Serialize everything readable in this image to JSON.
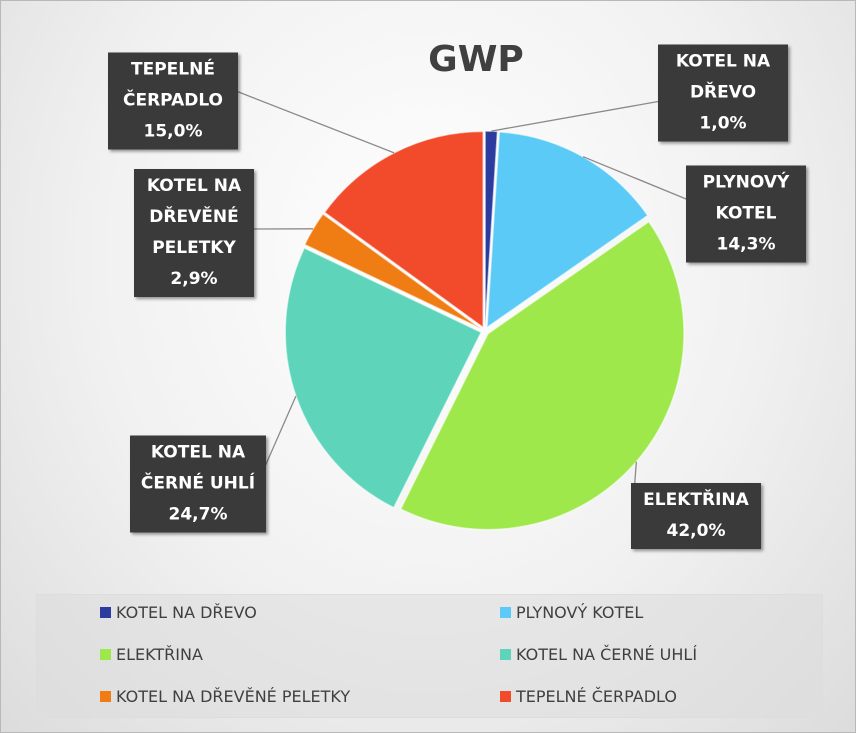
{
  "chart_data": {
    "type": "pie",
    "title": "GWP",
    "categories": [
      "KOTEL NA DŘEVO",
      "PLYNOVÝ KOTEL",
      "ELEKTŘINA",
      "KOTEL NA ČERNÉ UHLÍ",
      "KOTEL NA DŘEVĚNÉ PELETKY",
      "TEPELNÉ ČERPADLO"
    ],
    "values": [
      1.0,
      14.3,
      42.0,
      24.7,
      2.9,
      15.0
    ],
    "value_labels": [
      "1,0%",
      "14,3%",
      "42,0%",
      "24,7%",
      "2,9%",
      "15,0%"
    ],
    "colors": [
      "#2b3c9e",
      "#5ccaf6",
      "#9ee84c",
      "#5ed5ba",
      "#f07c14",
      "#f24b2b"
    ],
    "legend": "bottom"
  }
}
